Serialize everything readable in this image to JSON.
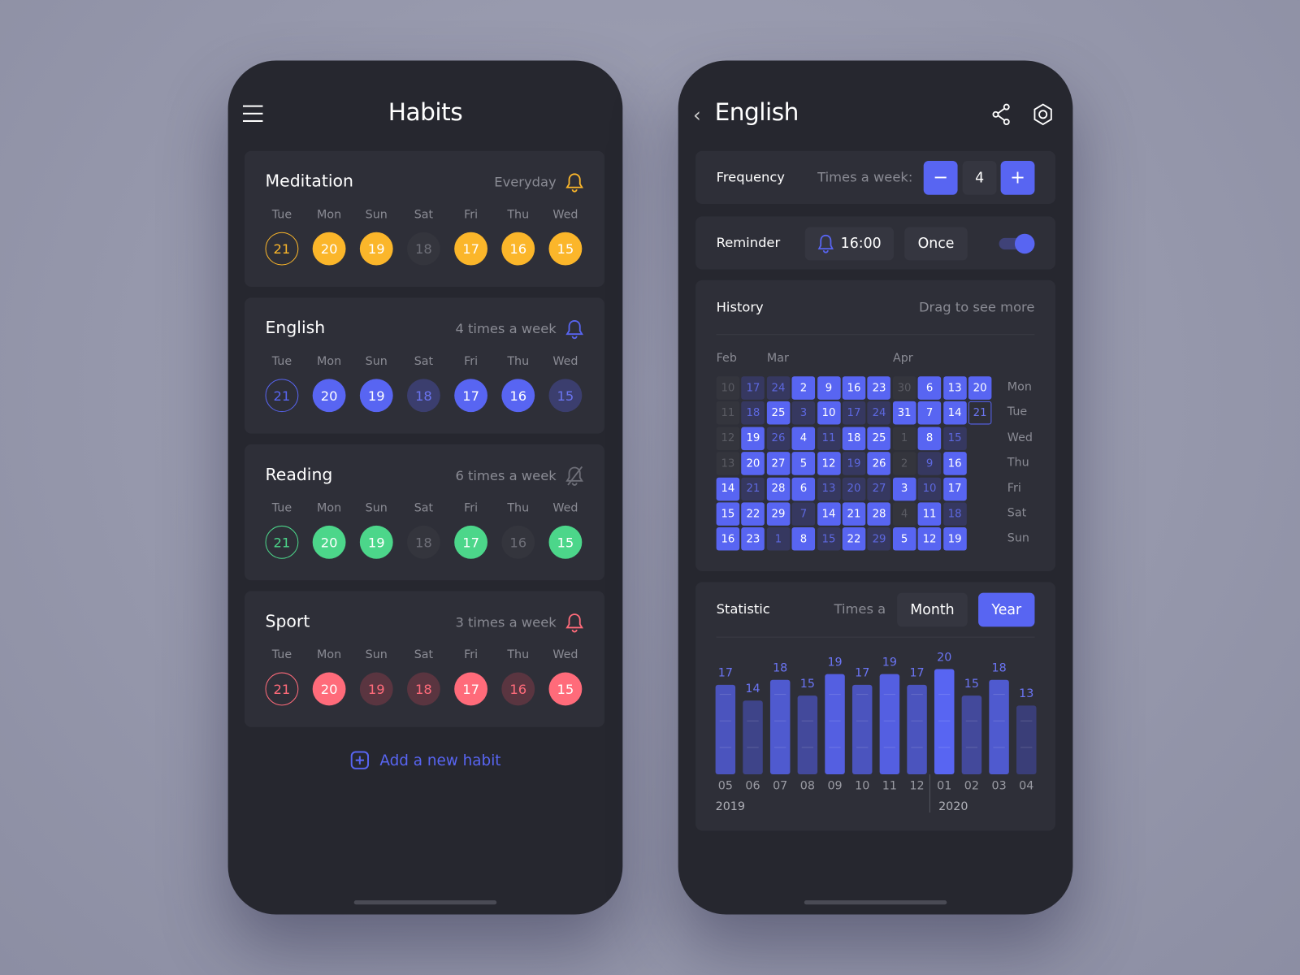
{
  "left": {
    "title": "Habits",
    "menu_icon": "hamburger-icon",
    "day_labels": [
      "Tue",
      "Mon",
      "Sun",
      "Sat",
      "Fri",
      "Thu",
      "Wed"
    ],
    "days": [
      "21",
      "20",
      "19",
      "18",
      "17",
      "16",
      "15"
    ],
    "habits": [
      {
        "name": "Meditation",
        "frequency": "Everyday",
        "color": "#fbb62a",
        "miss_color": "#34353d",
        "miss_text": "#6e6f78",
        "bell": "bell-icon",
        "states": [
          "today",
          "done",
          "done",
          "miss",
          "done",
          "done",
          "done"
        ]
      },
      {
        "name": "English",
        "frequency": "4 times a week",
        "color": "#5865f2",
        "miss_color": "#3b3e6e",
        "miss_text": "#6a74f0",
        "bell": "bell-icon",
        "states": [
          "today",
          "done",
          "done",
          "miss",
          "done",
          "done",
          "miss"
        ]
      },
      {
        "name": "Reading",
        "frequency": "6 times a week",
        "color": "#4cd68a",
        "miss_color": "#34353d",
        "miss_text": "#6e6f78",
        "bell": "bell-off-icon",
        "states": [
          "today",
          "done",
          "done",
          "miss",
          "done",
          "miss",
          "done"
        ]
      },
      {
        "name": "Sport",
        "frequency": "3 times a week",
        "color": "#ff6b7a",
        "miss_color": "#5a3540",
        "miss_text": "#ff6b7a",
        "bell": "bell-icon",
        "states": [
          "today",
          "done",
          "miss",
          "miss",
          "done",
          "miss",
          "done"
        ]
      }
    ],
    "add_label": "Add a new habit"
  },
  "right": {
    "title": "English",
    "frequency": {
      "label": "Frequency",
      "sub": "Times a week:",
      "value": "4",
      "minus": "−",
      "plus": "+"
    },
    "reminder": {
      "label": "Reminder",
      "time": "16:00",
      "repeat": "Once",
      "enabled": true
    },
    "history": {
      "title": "History",
      "hint": "Drag to see more",
      "months": [
        "Feb",
        "Mar",
        "Apr"
      ],
      "weekdays": [
        "Mon",
        "Tue",
        "Wed",
        "Thu",
        "Fri",
        "Sat",
        "Sun"
      ],
      "weeks": [
        [
          [
            "10",
            "none"
          ],
          [
            "11",
            "none"
          ],
          [
            "12",
            "none"
          ],
          [
            "13",
            "none"
          ],
          [
            "14",
            "on"
          ],
          [
            "15",
            "on"
          ],
          [
            "16",
            "on"
          ]
        ],
        [
          [
            "17",
            "off"
          ],
          [
            "18",
            "off"
          ],
          [
            "19",
            "on"
          ],
          [
            "20",
            "on"
          ],
          [
            "21",
            "off"
          ],
          [
            "22",
            "on"
          ],
          [
            "23",
            "on"
          ]
        ],
        [
          [
            "24",
            "off"
          ],
          [
            "25",
            "on"
          ],
          [
            "26",
            "off"
          ],
          [
            "27",
            "on"
          ],
          [
            "28",
            "on"
          ],
          [
            "29",
            "on"
          ],
          [
            "1",
            "off"
          ]
        ],
        [
          [
            "2",
            "on"
          ],
          [
            "3",
            "off"
          ],
          [
            "4",
            "on"
          ],
          [
            "5",
            "on"
          ],
          [
            "6",
            "on"
          ],
          [
            "7",
            "off"
          ],
          [
            "8",
            "on"
          ]
        ],
        [
          [
            "9",
            "on"
          ],
          [
            "10",
            "on"
          ],
          [
            "11",
            "off"
          ],
          [
            "12",
            "on"
          ],
          [
            "13",
            "off"
          ],
          [
            "14",
            "on"
          ],
          [
            "15",
            "off"
          ]
        ],
        [
          [
            "16",
            "on"
          ],
          [
            "17",
            "off"
          ],
          [
            "18",
            "on"
          ],
          [
            "19",
            "off"
          ],
          [
            "20",
            "off"
          ],
          [
            "21",
            "on"
          ],
          [
            "22",
            "on"
          ]
        ],
        [
          [
            "23",
            "on"
          ],
          [
            "24",
            "off"
          ],
          [
            "25",
            "on"
          ],
          [
            "26",
            "on"
          ],
          [
            "27",
            "off"
          ],
          [
            "28",
            "on"
          ],
          [
            "29",
            "off"
          ]
        ],
        [
          [
            "30",
            "none"
          ],
          [
            "31",
            "on"
          ],
          [
            "1",
            "none"
          ],
          [
            "2",
            "none"
          ],
          [
            "3",
            "on"
          ],
          [
            "4",
            "none"
          ],
          [
            "5",
            "on"
          ]
        ],
        [
          [
            "6",
            "on"
          ],
          [
            "7",
            "on"
          ],
          [
            "8",
            "on"
          ],
          [
            "9",
            "off"
          ],
          [
            "10",
            "off"
          ],
          [
            "11",
            "on"
          ],
          [
            "12",
            "on"
          ]
        ],
        [
          [
            "13",
            "on"
          ],
          [
            "14",
            "on"
          ],
          [
            "15",
            "off"
          ],
          [
            "16",
            "on"
          ],
          [
            "17",
            "on"
          ],
          [
            "18",
            "off"
          ],
          [
            "19",
            "on"
          ]
        ],
        [
          [
            "20",
            "on"
          ],
          [
            "21",
            "today"
          ]
        ]
      ]
    },
    "statistic": {
      "title": "Statistic",
      "sub": "Times a",
      "tabs": [
        "Month",
        "Year"
      ],
      "active_tab": "Year"
    }
  },
  "chart_data": {
    "type": "bar",
    "categories": [
      "05",
      "06",
      "07",
      "08",
      "09",
      "10",
      "11",
      "12",
      "01",
      "02",
      "03",
      "04"
    ],
    "values": [
      17,
      14,
      18,
      15,
      19,
      17,
      19,
      17,
      20,
      15,
      18,
      13
    ],
    "year_labels": [
      "2019",
      "2020"
    ],
    "color": "#5865f2"
  }
}
